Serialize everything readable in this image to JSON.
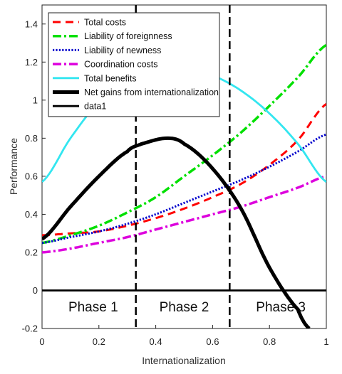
{
  "chart_data": {
    "type": "line",
    "xlabel": "Internationalization",
    "ylabel": "Performance",
    "xlim": [
      0,
      1
    ],
    "ylim": [
      -0.2,
      1.5
    ],
    "x_ticks": [
      "0",
      "0.2",
      "0.4",
      "0.6",
      "0.8",
      "1"
    ],
    "y_ticks": [
      "-0.2",
      "0",
      "0.2",
      "0.4",
      "0.6",
      "0.8",
      "1",
      "1.2",
      "1.4"
    ],
    "x_tick_values": [
      0,
      0.2,
      0.4,
      0.6,
      0.8,
      1
    ],
    "y_tick_values": [
      -0.2,
      0,
      0.2,
      0.4,
      0.6,
      0.8,
      1,
      1.2,
      1.4
    ],
    "legend_position": "top-left",
    "phase_boundaries": [
      0.33,
      0.66
    ],
    "phases": [
      {
        "label": "Phase 1",
        "x": 0.18
      },
      {
        "label": "Phase 2",
        "x": 0.5
      },
      {
        "label": "Phase 3",
        "x": 0.84
      }
    ],
    "series": [
      {
        "name": "Total costs",
        "color": "#ff0000",
        "style": "dashed",
        "x": [
          0,
          0.1,
          0.2,
          0.3,
          0.4,
          0.5,
          0.6,
          0.7,
          0.8,
          0.9,
          1.0
        ],
        "y": [
          0.29,
          0.3,
          0.31,
          0.34,
          0.38,
          0.43,
          0.49,
          0.56,
          0.66,
          0.79,
          0.98
        ]
      },
      {
        "name": "Liability of foreignness",
        "color": "#00e000",
        "style": "dashdot",
        "x": [
          0,
          0.1,
          0.2,
          0.3,
          0.4,
          0.5,
          0.6,
          0.7,
          0.8,
          0.9,
          1.0
        ],
        "y": [
          0.25,
          0.29,
          0.34,
          0.41,
          0.49,
          0.6,
          0.71,
          0.83,
          0.97,
          1.12,
          1.29
        ]
      },
      {
        "name": "Liability of newness",
        "color": "#0000cc",
        "style": "dotted",
        "x": [
          0,
          0.1,
          0.2,
          0.3,
          0.4,
          0.5,
          0.6,
          0.7,
          0.8,
          0.9,
          1.0
        ],
        "y": [
          0.25,
          0.28,
          0.31,
          0.35,
          0.4,
          0.46,
          0.52,
          0.58,
          0.65,
          0.73,
          0.82
        ]
      },
      {
        "name": "Coordination costs",
        "color": "#dd00dd",
        "style": "dashdot",
        "x": [
          0,
          0.1,
          0.2,
          0.3,
          0.4,
          0.5,
          0.6,
          0.7,
          0.8,
          0.9,
          1.0
        ],
        "y": [
          0.2,
          0.22,
          0.25,
          0.28,
          0.32,
          0.36,
          0.4,
          0.44,
          0.49,
          0.54,
          0.6
        ]
      },
      {
        "name": "Total benefits",
        "color": "#33e6f0",
        "style": "solid",
        "x": [
          0,
          0.1,
          0.2,
          0.3,
          0.4,
          0.5,
          0.6,
          0.7,
          0.8,
          0.9,
          1.0
        ],
        "y": [
          0.57,
          0.8,
          0.99,
          1.1,
          1.16,
          1.17,
          1.13,
          1.05,
          0.93,
          0.77,
          0.57
        ]
      },
      {
        "name": "Net gains from internationalization",
        "color": "#000000",
        "style": "solid-thick",
        "x": [
          0,
          0.1,
          0.2,
          0.3,
          0.35,
          0.44,
          0.5,
          0.6,
          0.7,
          0.8,
          0.9,
          0.94
        ],
        "y": [
          0.27,
          0.44,
          0.6,
          0.73,
          0.77,
          0.8,
          0.77,
          0.64,
          0.43,
          0.12,
          -0.1,
          -0.2
        ]
      },
      {
        "name": "data1",
        "color": "#000000",
        "style": "solid",
        "x": [
          0,
          1
        ],
        "y": [
          0,
          0
        ]
      }
    ]
  }
}
